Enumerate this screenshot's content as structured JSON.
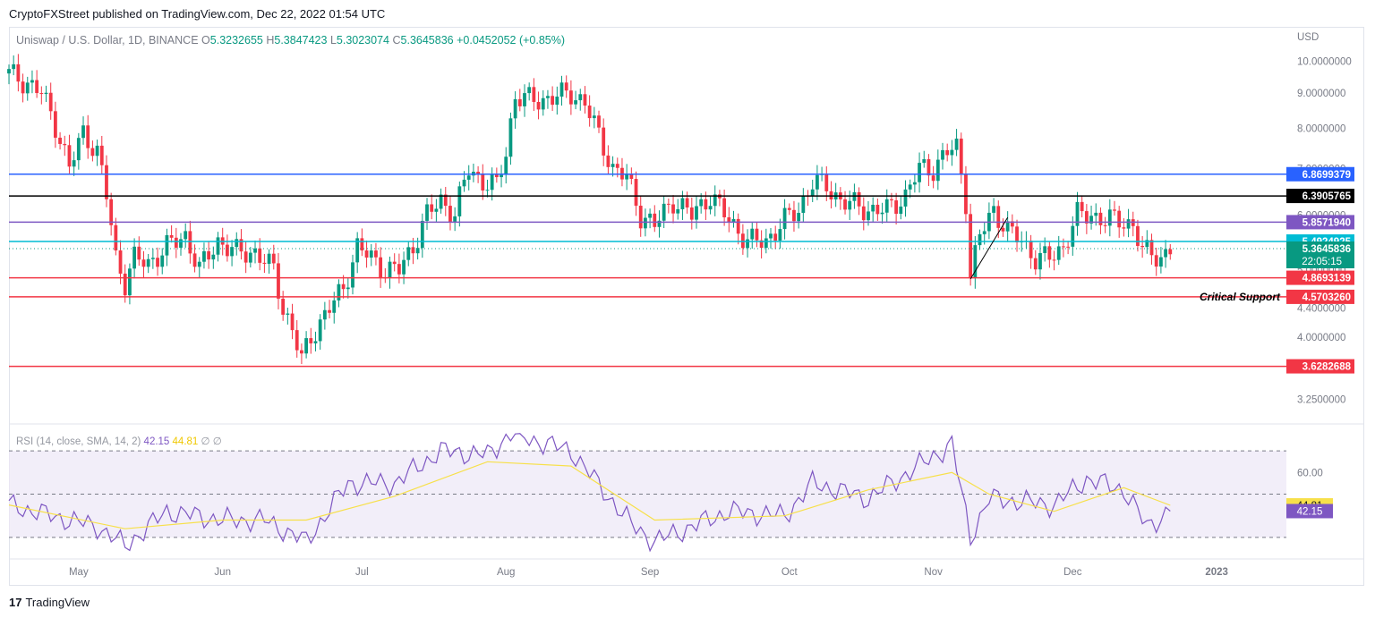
{
  "header": {
    "text": "CryptoFXStreet published on TradingView.com, Dec 22, 2022 01:54 UTC"
  },
  "legend": {
    "symbol": "Uniswap / U.S. Dollar, 1D, BINANCE",
    "o_label": "O",
    "o": "5.3232655",
    "h_label": "H",
    "h": "5.3847423",
    "l_label": "L",
    "l": "5.3023074",
    "c_label": "C",
    "c": "5.3645836",
    "change": "+0.0452052 (+0.85%)"
  },
  "currency": "USD",
  "rsi_legend": {
    "name": "RSI (14, close, SMA, 14, 2)",
    "rsi": "42.15",
    "ma": "44.81",
    "extra": "∅ ∅"
  },
  "footer": {
    "brand": "TradingView",
    "logo": "17"
  },
  "annotation": "Critical Support",
  "colors": {
    "up": "#089981",
    "down": "#f23645",
    "blue": "#2962ff",
    "black": "#000000",
    "purple": "#7e57c2",
    "cyan": "#00bcd4",
    "red": "#f23645",
    "rsi": "#7e57c2",
    "rsi_ma": "#f7e04a"
  },
  "chart_data": [
    {
      "type": "candlestick",
      "title": "Uniswap / U.S. Dollar, 1D, BINANCE",
      "y_scale": "log",
      "ylim": [
        3.05,
        10.5
      ],
      "price_ticks": [
        "10.0000000",
        "9.0000000",
        "8.0000000",
        "7.0000000",
        "6.0000000",
        "5.0000000",
        "4.4000000",
        "4.0000000",
        "3.2500000"
      ],
      "time_labels": [
        "May",
        "Jun",
        "Jul",
        "Aug",
        "Sep",
        "Oct",
        "Nov",
        "Dec",
        "2023"
      ],
      "horizontal_levels": [
        {
          "value": 6.8699379,
          "label": "6.8699379",
          "color": "blue"
        },
        {
          "value": 6.3905765,
          "label": "6.3905765",
          "color": "black"
        },
        {
          "value": 5.857194,
          "label": "5.8571940",
          "color": "purple"
        },
        {
          "value": 5.4924925,
          "label": "5.4924925",
          "color": "cyan"
        },
        {
          "value": 4.8693139,
          "label": "4.8693139",
          "color": "red"
        },
        {
          "value": 4.570326,
          "label": "4.5703260",
          "color": "red"
        },
        {
          "value": 3.6282688,
          "label": "3.6282688",
          "color": "red"
        }
      ],
      "last_price": {
        "value": 5.3645836,
        "label": "5.3645836",
        "countdown": "22:05:15"
      },
      "close_path": [
        [
          "2022-04-16",
          9.6
        ],
        [
          "2022-04-20",
          9.3
        ],
        [
          "2022-04-23",
          9.0
        ],
        [
          "2022-04-26",
          8.1
        ],
        [
          "2022-04-29",
          7.0
        ],
        [
          "2022-05-02",
          7.9
        ],
        [
          "2022-05-05",
          7.4
        ],
        [
          "2022-05-07",
          6.4
        ],
        [
          "2022-05-09",
          5.2
        ],
        [
          "2022-05-11",
          4.8
        ],
        [
          "2022-05-13",
          5.2
        ],
        [
          "2022-05-16",
          5.1
        ],
        [
          "2022-05-20",
          5.4
        ],
        [
          "2022-05-24",
          5.6
        ],
        [
          "2022-05-27",
          5.0
        ],
        [
          "2022-05-31",
          5.5
        ],
        [
          "2022-06-04",
          5.3
        ],
        [
          "2022-06-08",
          5.3
        ],
        [
          "2022-06-12",
          5.0
        ],
        [
          "2022-06-14",
          4.4
        ],
        [
          "2022-06-16",
          4.1
        ],
        [
          "2022-06-18",
          3.7
        ],
        [
          "2022-06-20",
          4.0
        ],
        [
          "2022-06-22",
          4.2
        ],
        [
          "2022-06-24",
          4.4
        ],
        [
          "2022-06-27",
          4.7
        ],
        [
          "2022-06-30",
          5.4
        ],
        [
          "2022-07-03",
          5.2
        ],
        [
          "2022-07-06",
          5.0
        ],
        [
          "2022-07-09",
          5.0
        ],
        [
          "2022-07-12",
          5.4
        ],
        [
          "2022-07-15",
          6.0
        ],
        [
          "2022-07-18",
          6.3
        ],
        [
          "2022-07-21",
          6.0
        ],
        [
          "2022-07-24",
          7.0
        ],
        [
          "2022-07-27",
          6.7
        ],
        [
          "2022-07-30",
          6.6
        ],
        [
          "2022-08-01",
          7.4
        ],
        [
          "2022-08-03",
          8.9
        ],
        [
          "2022-08-06",
          8.8
        ],
        [
          "2022-08-09",
          8.8
        ],
        [
          "2022-08-12",
          8.9
        ],
        [
          "2022-08-15",
          9.0
        ],
        [
          "2022-08-18",
          8.7
        ],
        [
          "2022-08-21",
          7.8
        ],
        [
          "2022-08-24",
          7.0
        ],
        [
          "2022-08-27",
          6.8
        ],
        [
          "2022-08-30",
          6.0
        ],
        [
          "2022-09-02",
          5.8
        ],
        [
          "2022-09-06",
          6.3
        ],
        [
          "2022-09-10",
          6.0
        ],
        [
          "2022-09-14",
          6.4
        ],
        [
          "2022-09-18",
          5.9
        ],
        [
          "2022-09-22",
          5.5
        ],
        [
          "2022-09-26",
          5.5
        ],
        [
          "2022-09-30",
          5.9
        ],
        [
          "2022-10-03",
          6.1
        ],
        [
          "2022-10-06",
          6.7
        ],
        [
          "2022-10-09",
          6.6
        ],
        [
          "2022-10-12",
          6.3
        ],
        [
          "2022-10-15",
          6.2
        ],
        [
          "2022-10-18",
          6.1
        ],
        [
          "2022-10-22",
          6.1
        ],
        [
          "2022-10-26",
          6.4
        ],
        [
          "2022-10-29",
          7.0
        ],
        [
          "2022-11-01",
          7.0
        ],
        [
          "2022-11-04",
          7.4
        ],
        [
          "2022-11-06",
          7.5
        ],
        [
          "2022-11-08",
          6.3
        ],
        [
          "2022-11-09",
          4.9
        ],
        [
          "2022-11-11",
          5.6
        ],
        [
          "2022-11-14",
          6.1
        ],
        [
          "2022-11-17",
          5.7
        ],
        [
          "2022-11-20",
          5.5
        ],
        [
          "2022-11-23",
          5.2
        ],
        [
          "2022-11-26",
          5.2
        ],
        [
          "2022-11-29",
          5.4
        ],
        [
          "2022-12-02",
          6.0
        ],
        [
          "2022-12-05",
          6.0
        ],
        [
          "2022-12-08",
          5.9
        ],
        [
          "2022-12-11",
          5.9
        ],
        [
          "2022-12-14",
          5.8
        ],
        [
          "2022-12-16",
          5.3
        ],
        [
          "2022-12-18",
          5.3
        ],
        [
          "2022-12-20",
          5.2
        ],
        [
          "2022-12-22",
          5.36
        ]
      ]
    },
    {
      "type": "line",
      "title": "RSI (14, close, SMA, 14, 2)",
      "ylim": [
        20,
        80
      ],
      "reference_lines": [
        70,
        50,
        30
      ],
      "tick_labels": [
        "60.00"
      ],
      "series": [
        {
          "name": "RSI",
          "last": 42.15,
          "values": [
            [
              "2022-04-16",
              45
            ],
            [
              "2022-04-25",
              40
            ],
            [
              "2022-05-05",
              35
            ],
            [
              "2022-05-11",
              26
            ],
            [
              "2022-05-20",
              42
            ],
            [
              "2022-06-01",
              38
            ],
            [
              "2022-06-10",
              38
            ],
            [
              "2022-06-19",
              28
            ],
            [
              "2022-06-28",
              55
            ],
            [
              "2022-07-08",
              55
            ],
            [
              "2022-07-18",
              70
            ],
            [
              "2022-07-28",
              68
            ],
            [
              "2022-08-02",
              78
            ],
            [
              "2022-08-15",
              70
            ],
            [
              "2022-08-28",
              36
            ],
            [
              "2022-09-02",
              28
            ],
            [
              "2022-09-18",
              42
            ],
            [
              "2022-09-30",
              40
            ],
            [
              "2022-10-06",
              55
            ],
            [
              "2022-10-18",
              48
            ],
            [
              "2022-11-05",
              73
            ],
            [
              "2022-11-09",
              30
            ],
            [
              "2022-11-13",
              48
            ],
            [
              "2022-11-27",
              45
            ],
            [
              "2022-12-04",
              57
            ],
            [
              "2022-12-12",
              52
            ],
            [
              "2022-12-17",
              35
            ],
            [
              "2022-12-22",
              42.15
            ]
          ]
        },
        {
          "name": "RSI-based MA",
          "last": 44.81,
          "values": [
            [
              "2022-04-16",
              45
            ],
            [
              "2022-05-11",
              34
            ],
            [
              "2022-06-01",
              38
            ],
            [
              "2022-06-19",
              38
            ],
            [
              "2022-07-08",
              49
            ],
            [
              "2022-07-28",
              65
            ],
            [
              "2022-08-15",
              63
            ],
            [
              "2022-09-02",
              38
            ],
            [
              "2022-09-30",
              40
            ],
            [
              "2022-10-18",
              52
            ],
            [
              "2022-11-05",
              60
            ],
            [
              "2022-11-13",
              50
            ],
            [
              "2022-11-27",
              42
            ],
            [
              "2022-12-12",
              53
            ],
            [
              "2022-12-22",
              44.81
            ]
          ]
        }
      ]
    }
  ]
}
